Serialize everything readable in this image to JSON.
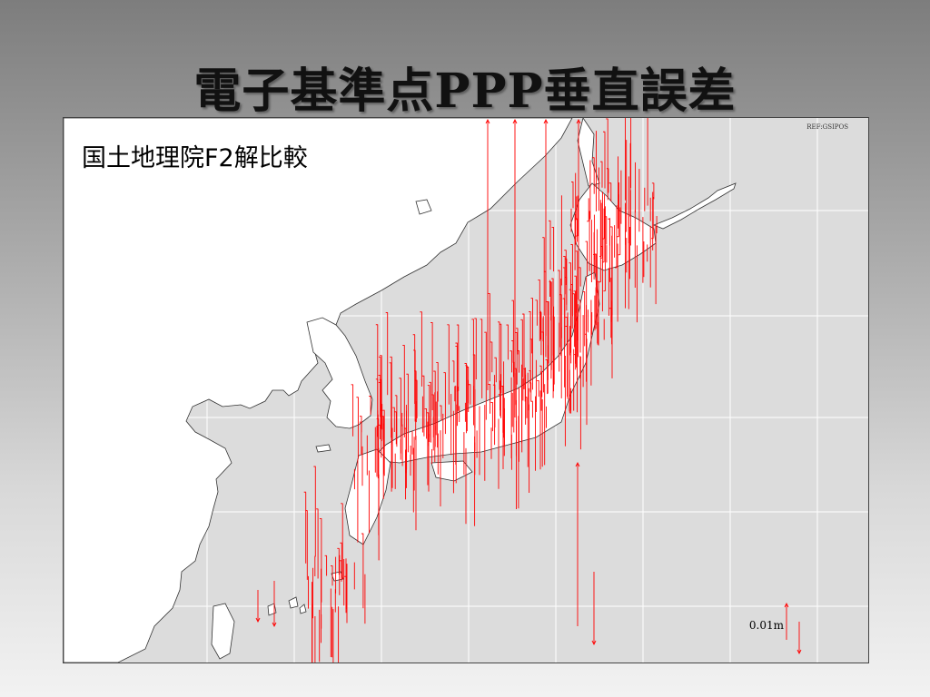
{
  "slide": {
    "title": "電子基準点PPP垂直誤差"
  },
  "map": {
    "subtitle": "国土地理院F2解比較",
    "reference_label": "REF:GSIPOS",
    "scale_label": "0.01m",
    "colors": {
      "sea": "#dcdcdc",
      "land": "#ffffff",
      "coastline": "#333333",
      "graticule": "#ffffff",
      "error_arrow": "#ff0000"
    }
  }
}
